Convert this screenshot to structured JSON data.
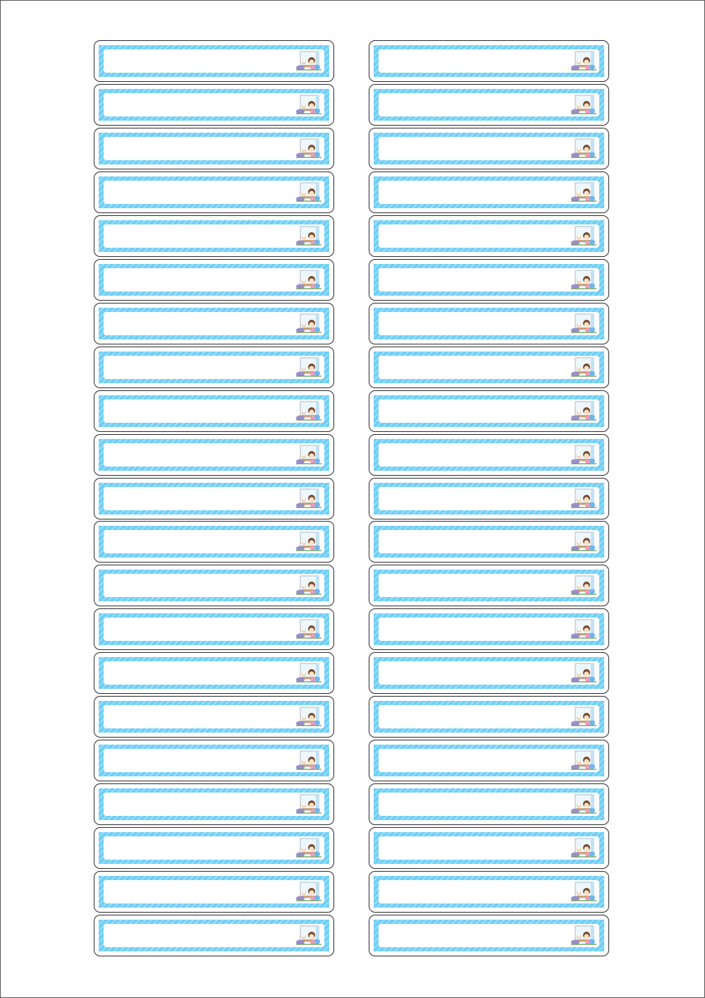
{
  "sheet": {
    "columns": 2,
    "rows": 21,
    "label_text": "",
    "colors": {
      "border": "#2a2a2a",
      "frame_stripe_dark": "#6fcff6",
      "frame_stripe_light": "#9fdff9",
      "field": "#ffffff"
    },
    "illustration": "girl-with-cat-at-window-icon"
  }
}
